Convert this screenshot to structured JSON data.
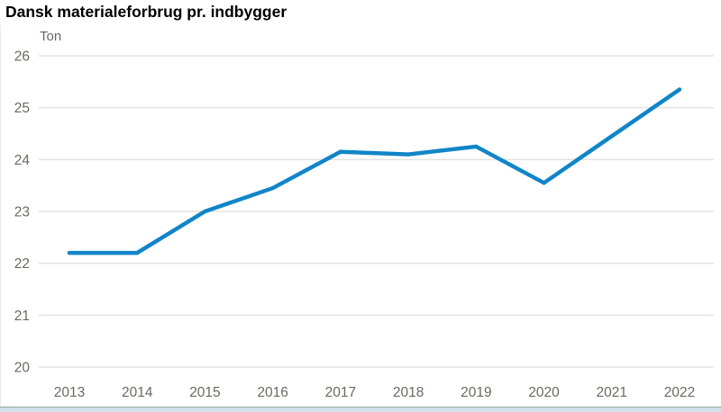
{
  "header": {
    "title": "Dansk materialeforbrug pr. indbygger",
    "unit_label": "Ton"
  },
  "chart_data": {
    "type": "line",
    "title": "Dansk materialeforbrug pr. indbygger",
    "xlabel": "",
    "ylabel": "Ton",
    "x": [
      2013,
      2014,
      2015,
      2016,
      2017,
      2018,
      2019,
      2020,
      2021,
      2022
    ],
    "series": [
      {
        "name": "Materialeforbrug pr. indbygger (ton)",
        "values": [
          22.2,
          22.2,
          23.0,
          23.45,
          24.15,
          24.1,
          24.25,
          23.55,
          24.45,
          25.35
        ]
      }
    ],
    "ylim": [
      20,
      26
    ],
    "yticks": [
      26,
      25,
      24,
      23,
      22,
      21,
      20
    ],
    "grid": true,
    "legend_position": "none",
    "colors": {
      "line": "#1185c8",
      "gridline": "#e4e3df",
      "tick_label": "#6b695f",
      "title": "#000000",
      "unit_label": "#666666"
    }
  }
}
